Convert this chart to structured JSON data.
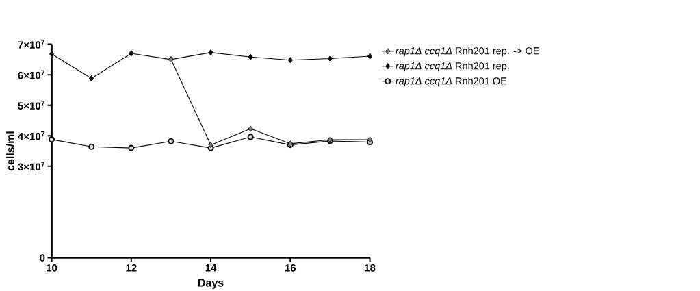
{
  "chart_data": {
    "type": "line",
    "xlabel": "Days",
    "ylabel": "cells/ml",
    "x": [
      10,
      11,
      12,
      13,
      14,
      15,
      16,
      17,
      18
    ],
    "series": [
      {
        "name": "*rap1Δ ccq1Δ* Rnh201 rep. -> OE",
        "color": "#808080",
        "marker": "diamond",
        "values": [
          null,
          null,
          null,
          65000000,
          37000000,
          42300000,
          37400000,
          38700000,
          38700000
        ]
      },
      {
        "name": "*rap1Δ ccq1Δ* Rnh201 rep.",
        "color": "#000000",
        "marker": "diamond",
        "values": [
          66800000,
          58800000,
          67000000,
          65000000,
          67300000,
          65800000,
          64800000,
          65300000,
          66100000
        ]
      },
      {
        "name": "*rap1Δ ccq1Δ* Rnh201 OE",
        "color": "#d3d3d3",
        "marker": "circle",
        "values": [
          38800000,
          36400000,
          36000000,
          38200000,
          36000000,
          39600000,
          37000000,
          38300000,
          37900000
        ]
      }
    ],
    "xlim": [
      10,
      18
    ],
    "xticks": [
      10,
      12,
      14,
      16,
      18
    ],
    "ylim": [
      0,
      70000000
    ],
    "yticks": [
      0,
      {
        "value": 30000000,
        "label": "3×10$^{7}$"
      },
      {
        "value": 40000000,
        "label": "4×10$^{7}$"
      },
      {
        "value": 50000000,
        "label": "5×10$^{7}$"
      },
      {
        "value": 60000000,
        "label": "6×10$^{7}$"
      },
      {
        "value": 70000000,
        "label": "7×10$^{7}$"
      }
    ],
    "grid": false,
    "legend": "top right",
    "line_style": "solid"
  }
}
